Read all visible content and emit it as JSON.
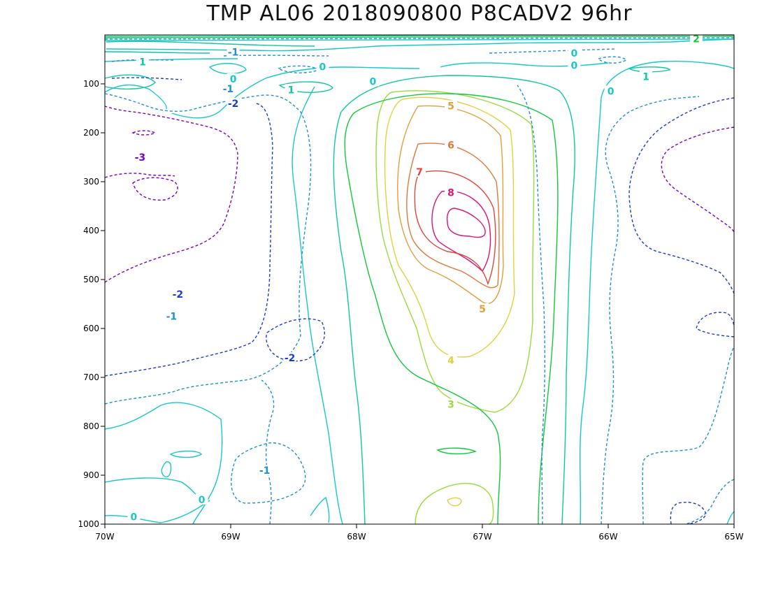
{
  "chart_data": {
    "type": "contour",
    "title": "TMP AL06 2018090800 P8CADV2 96hr",
    "x_axis": {
      "range": [
        "70W",
        "65W"
      ],
      "ticks": [
        "70W",
        "69W",
        "68W",
        "67W",
        "66W",
        "65W"
      ]
    },
    "y_axis": {
      "range": [
        1000,
        0
      ],
      "ticks": [
        "100",
        "200",
        "300",
        "400",
        "500",
        "600",
        "700",
        "800",
        "900",
        "1000"
      ]
    },
    "grid": false,
    "contour_levels": [
      {
        "level": -3,
        "color": "#7a00c8",
        "dashed": true
      },
      {
        "level": -2,
        "color": "#1c3cd0",
        "dashed": true
      },
      {
        "level": -1,
        "color": "#1e90dc",
        "dashed": true
      },
      {
        "level": 0,
        "color": "#18c8c8",
        "dashed": false
      },
      {
        "level": 1,
        "color": "#10c8a0",
        "dashed": false
      },
      {
        "level": 2,
        "color": "#12c83c",
        "dashed": false
      },
      {
        "level": 3,
        "color": "#9adc3c",
        "dashed": false
      },
      {
        "level": 4,
        "color": "#e0d23c",
        "dashed": false
      },
      {
        "level": 5,
        "color": "#e0a03c",
        "dashed": false
      },
      {
        "level": 6,
        "color": "#e0783c",
        "dashed": false
      },
      {
        "level": 7,
        "color": "#e0463c",
        "dashed": false
      },
      {
        "level": 8,
        "color": "#dc1478",
        "dashed": false
      }
    ],
    "contour_labels": [
      {
        "text": "-3",
        "lon": -69.72,
        "p": 250,
        "level": -3
      },
      {
        "text": "-2",
        "lon": -68.98,
        "p": 140,
        "level": -2
      },
      {
        "text": "-2",
        "lon": -69.42,
        "p": 530,
        "level": -2
      },
      {
        "text": "-2",
        "lon": -68.53,
        "p": 660,
        "level": -2
      },
      {
        "text": "-1",
        "lon": -69.02,
        "p": 110,
        "level": -1
      },
      {
        "text": "-1",
        "lon": -69.47,
        "p": 575,
        "level": -1
      },
      {
        "text": "-1",
        "lon": -68.73,
        "p": 890,
        "level": -1
      },
      {
        "text": "-1",
        "lon": -68.98,
        "p": 35,
        "level": -1
      },
      {
        "text": "0",
        "lon": -68.98,
        "p": 90,
        "level": 0
      },
      {
        "text": "0",
        "lon": -68.27,
        "p": 65,
        "level": 0
      },
      {
        "text": "0",
        "lon": -67.87,
        "p": 95,
        "level": 0
      },
      {
        "text": "0",
        "lon": -66.27,
        "p": 37,
        "level": 0
      },
      {
        "text": "0",
        "lon": -66.27,
        "p": 62,
        "level": 0
      },
      {
        "text": "0",
        "lon": -65.98,
        "p": 115,
        "level": 0
      },
      {
        "text": "0",
        "lon": -69.23,
        "p": 950,
        "level": 0
      },
      {
        "text": "0",
        "lon": -69.77,
        "p": 985,
        "level": 0
      },
      {
        "text": "1",
        "lon": -68.52,
        "p": 112,
        "level": 1
      },
      {
        "text": "1",
        "lon": -65.7,
        "p": 85,
        "level": 1
      },
      {
        "text": "1",
        "lon": -69.7,
        "p": 55,
        "level": 1
      },
      {
        "text": "2",
        "lon": -65.3,
        "p": 8,
        "level": 2
      },
      {
        "text": "3",
        "lon": -67.25,
        "p": 755,
        "level": 3
      },
      {
        "text": "4",
        "lon": -67.25,
        "p": 665,
        "level": 4
      },
      {
        "text": "5",
        "lon": -67.25,
        "p": 145,
        "level": 5
      },
      {
        "text": "5",
        "lon": -67.0,
        "p": 560,
        "level": 5
      },
      {
        "text": "6",
        "lon": -67.25,
        "p": 225,
        "level": 6
      },
      {
        "text": "7",
        "lon": -67.5,
        "p": 280,
        "level": 7
      },
      {
        "text": "8",
        "lon": -67.25,
        "p": 322,
        "level": 8
      }
    ]
  }
}
